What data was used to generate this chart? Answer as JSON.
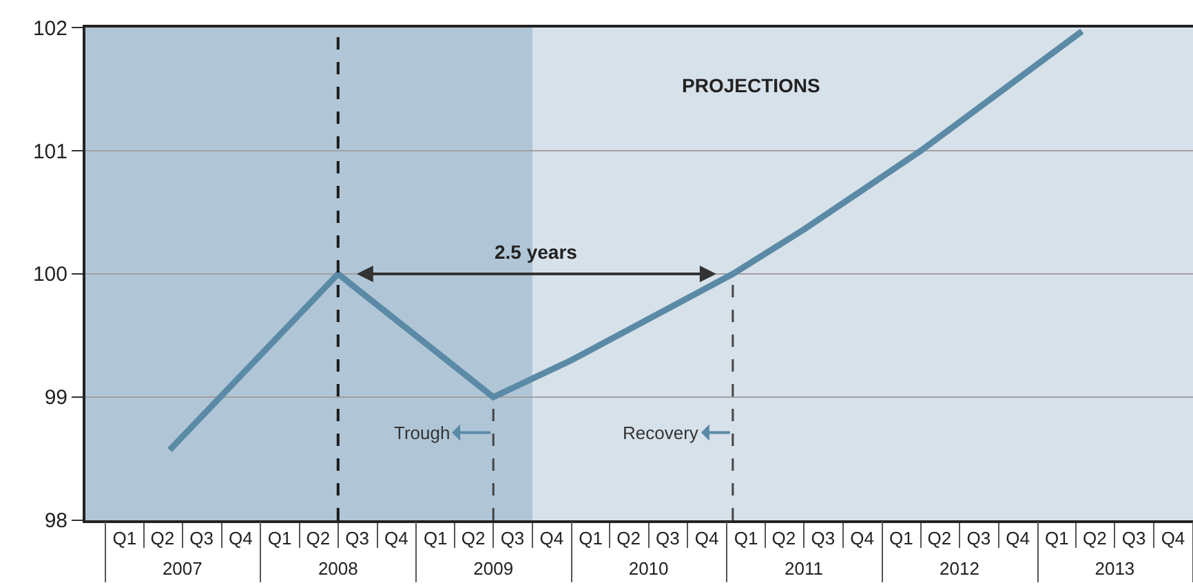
{
  "chart_data": {
    "type": "line",
    "x": [
      "2007-06-01",
      "2008-07-01",
      "2009-07-01",
      "2010-01-01",
      "2011-01-15",
      "2011-07-01",
      "2012-04-01",
      "2013-04-15"
    ],
    "series": [
      {
        "color": "#5b8aa6",
        "values": [
          98.57,
          100.0,
          99.0,
          99.3,
          100.0,
          100.36,
          101.0,
          101.97
        ]
      }
    ],
    "xlim": [
      "2006-11-15",
      "2014-01-01"
    ],
    "xticks": [
      {
        "value": "2007-02-15",
        "label": "Q1"
      },
      {
        "value": "2007-05-15",
        "label": "Q2"
      },
      {
        "value": "2007-08-15",
        "label": "Q3"
      },
      {
        "value": "2007-11-15",
        "label": "Q4"
      },
      {
        "value": "2008-02-15",
        "label": "Q1"
      },
      {
        "value": "2008-05-15",
        "label": "Q2"
      },
      {
        "value": "2008-08-15",
        "label": "Q3"
      },
      {
        "value": "2008-11-15",
        "label": "Q4"
      },
      {
        "value": "2009-02-15",
        "label": "Q1"
      },
      {
        "value": "2009-05-15",
        "label": "Q2"
      },
      {
        "value": "2009-08-15",
        "label": "Q3"
      },
      {
        "value": "2009-11-15",
        "label": "Q4"
      },
      {
        "value": "2010-02-15",
        "label": "Q1"
      },
      {
        "value": "2010-05-15",
        "label": "Q2"
      },
      {
        "value": "2010-08-15",
        "label": "Q3"
      },
      {
        "value": "2010-11-15",
        "label": "Q4"
      },
      {
        "value": "2011-02-15",
        "label": "Q1"
      },
      {
        "value": "2011-05-15",
        "label": "Q2"
      },
      {
        "value": "2011-08-15",
        "label": "Q3"
      },
      {
        "value": "2011-11-15",
        "label": "Q4"
      },
      {
        "value": "2012-02-15",
        "label": "Q1"
      },
      {
        "value": "2012-05-15",
        "label": "Q2"
      },
      {
        "value": "2012-08-15",
        "label": "Q3"
      },
      {
        "value": "2012-11-15",
        "label": "Q4"
      },
      {
        "value": "2013-02-15",
        "label": "Q1"
      },
      {
        "value": "2013-05-15",
        "label": "Q2"
      },
      {
        "value": "2013-08-15",
        "label": "Q3"
      },
      {
        "value": "2013-11-15",
        "label": "Q4"
      }
    ],
    "x2lim": [
      "2006-11-15",
      "2014-01-01"
    ],
    "x2ticks": [
      {
        "value": "2007-07-01",
        "label": "2007"
      },
      {
        "value": "2008-07-01",
        "label": "2008"
      },
      {
        "value": "2009-07-01",
        "label": "2009"
      },
      {
        "value": "2010-07-01",
        "label": "2010"
      },
      {
        "value": "2011-07-01",
        "label": "2011"
      },
      {
        "value": "2012-07-01",
        "label": "2012"
      },
      {
        "value": "2013-07-01",
        "label": "2013"
      }
    ],
    "ylim": [
      98,
      102
    ],
    "yticks": [
      98,
      99,
      100,
      101,
      102
    ],
    "grid": "y",
    "marker": "none",
    "line_style": "solid",
    "bands": [
      {
        "axis": "x",
        "from": "2006-11-15",
        "to": "2009-10-01",
        "color": "#b0c6d7"
      },
      {
        "axis": "x",
        "from": "2009-10-01",
        "to": "2014-01-01",
        "color": "#d7e1ea",
        "label": "PROJECTIONS"
      }
    ],
    "ref_lines": [
      {
        "axis": "x",
        "value": "2008-07-01",
        "color": "#1a1a1a",
        "line_style": "dashed"
      },
      {
        "axis": "x",
        "value": "2009-07-01",
        "label": "Trough",
        "color": "#444444",
        "line_style": "dashed"
      },
      {
        "axis": "x",
        "value": "2011-01-15",
        "label": "Recovery",
        "color": "#444444",
        "line_style": "dashed"
      }
    ],
    "annotations": [
      {
        "text": "2.5 years",
        "x": "2009-10-08",
        "y": 100
      }
    ]
  }
}
